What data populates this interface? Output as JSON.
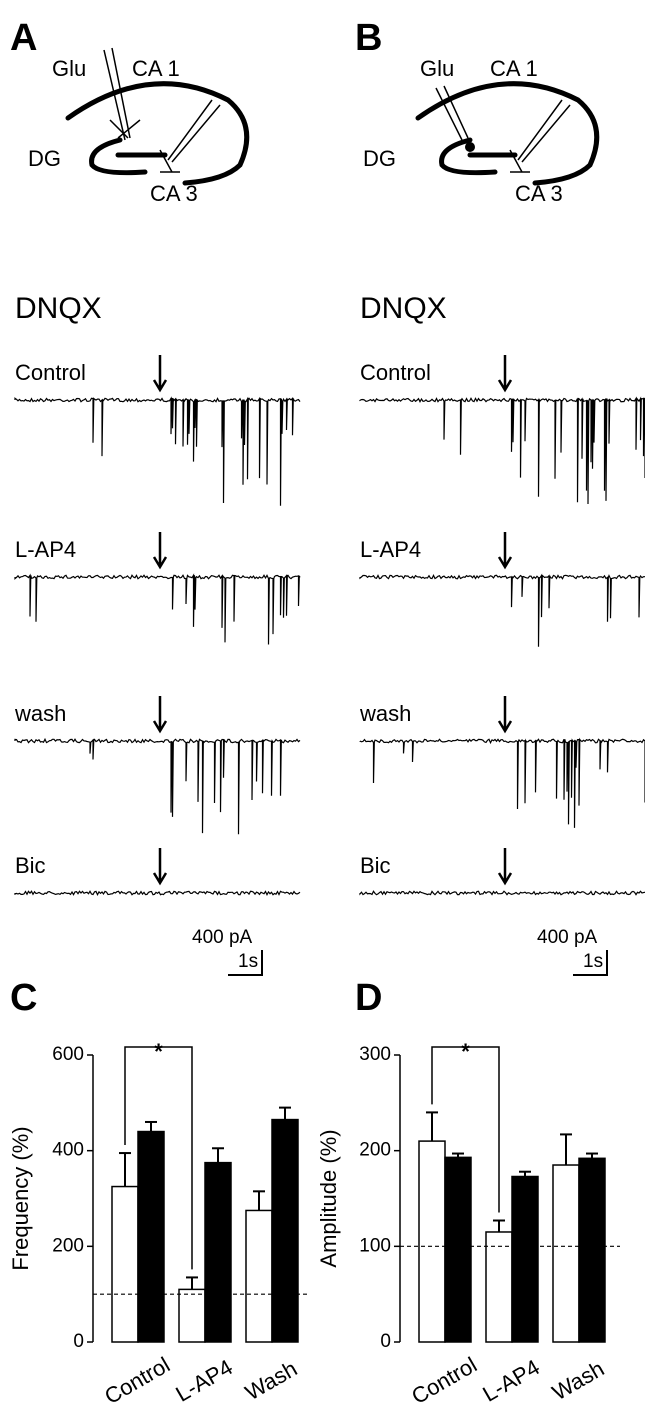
{
  "panels": [
    {
      "letter": "A",
      "diagram": {
        "glu": "Glu",
        "ca1": "CA 1",
        "dg": "DG",
        "ca3": "CA 3"
      },
      "drug": "DNQX",
      "traces": [
        "Control",
        "L-AP4",
        "wash",
        "Bic"
      ],
      "scale": {
        "current": "400 pA",
        "time": "1s"
      }
    },
    {
      "letter": "B",
      "diagram": {
        "glu": "Glu",
        "ca1": "CA 1",
        "dg": "DG",
        "ca3": "CA 3"
      },
      "drug": "DNQX",
      "traces": [
        "Control",
        "L-AP4",
        "wash",
        "Bic"
      ],
      "scale": {
        "current": "400 pA",
        "time": "1s"
      }
    }
  ],
  "chart_data": [
    {
      "type": "bar",
      "panel": "C",
      "y_label": "Frequency  (%)",
      "categories": [
        "Control",
        "L-AP4",
        "Wash"
      ],
      "series": [
        {
          "color": "#ffffff",
          "values": [
            325,
            110,
            275
          ],
          "errors": [
            70,
            25,
            40
          ]
        },
        {
          "color": "#000000",
          "values": [
            440,
            375,
            465
          ],
          "errors": [
            20,
            30,
            25
          ]
        }
      ],
      "ylim": [
        0,
        600
      ],
      "yticks": [
        0,
        200,
        400,
        600
      ],
      "reference_line": 100,
      "annotation": "*"
    },
    {
      "type": "bar",
      "panel": "D",
      "y_label": "Amplitude  (%)",
      "categories": [
        "Control",
        "L-AP4",
        "Wash"
      ],
      "series": [
        {
          "color": "#ffffff",
          "values": [
            210,
            115,
            185
          ],
          "errors": [
            30,
            12,
            32
          ]
        },
        {
          "color": "#000000",
          "values": [
            193,
            173,
            192
          ],
          "errors": [
            4,
            5,
            5
          ]
        }
      ],
      "ylim": [
        0,
        300
      ],
      "yticks": [
        0,
        100,
        200,
        300
      ],
      "reference_line": 100,
      "annotation": "*"
    }
  ]
}
